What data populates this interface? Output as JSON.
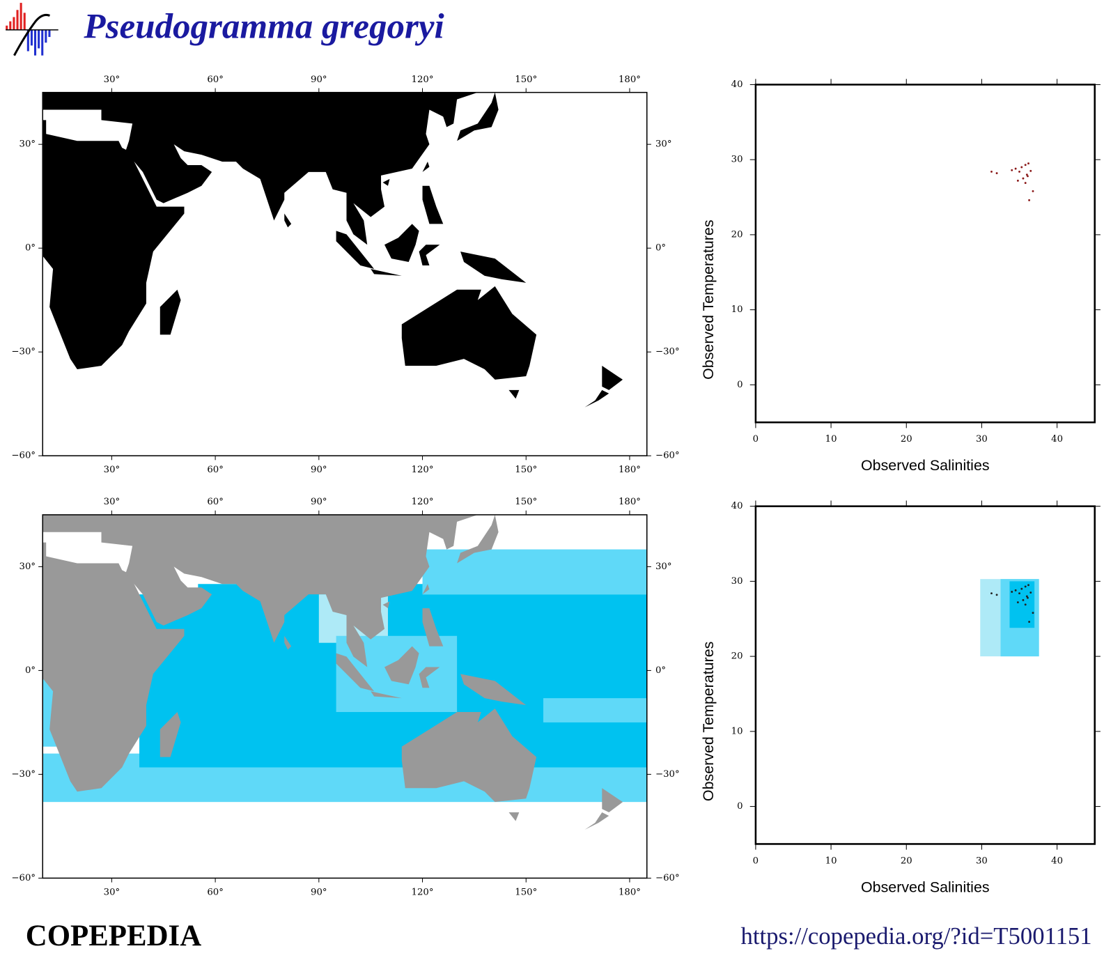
{
  "header": {
    "title": "Pseudogramma gregoryi"
  },
  "chart_data": [
    {
      "type": "map",
      "land_color": "#000000",
      "xlim": [
        10,
        185
      ],
      "ylim": [
        -60,
        45
      ],
      "xticks": [
        {
          "value": 30,
          "label": "30°"
        },
        {
          "value": 60,
          "label": "60°"
        },
        {
          "value": 90,
          "label": "90°"
        },
        {
          "value": 120,
          "label": "120°"
        },
        {
          "value": 150,
          "label": "150°"
        },
        {
          "value": 180,
          "label": "180°"
        }
      ],
      "yticks": [
        {
          "value": 30,
          "label": "30°"
        },
        {
          "value": 0,
          "label": "0°"
        },
        {
          "value": -30,
          "label": "−30°"
        },
        {
          "value": -60,
          "label": "−60°"
        }
      ]
    },
    {
      "type": "map",
      "land_color": "#999999",
      "zone_colors": [
        "#aeeaf7",
        "#5fd9f8",
        "#00c2f0"
      ],
      "xlim": [
        10,
        185
      ],
      "ylim": [
        -60,
        45
      ],
      "xticks": [
        {
          "value": 30,
          "label": "30°"
        },
        {
          "value": 60,
          "label": "60°"
        },
        {
          "value": 90,
          "label": "90°"
        },
        {
          "value": 120,
          "label": "120°"
        },
        {
          "value": 150,
          "label": "150°"
        },
        {
          "value": 180,
          "label": "180°"
        }
      ],
      "yticks": [
        {
          "value": 30,
          "label": "30°"
        },
        {
          "value": 0,
          "label": "0°"
        },
        {
          "value": -30,
          "label": "−30°"
        },
        {
          "value": -60,
          "label": "−60°"
        }
      ]
    },
    {
      "type": "scatter",
      "xlabel": "Observed Salinities",
      "ylabel": "Observed Temperatures",
      "color": "#8b1a1a",
      "xlim": [
        0,
        45
      ],
      "ylim": [
        -5,
        40
      ],
      "xticks": [
        0,
        10,
        20,
        30,
        40
      ],
      "yticks": [
        0,
        10,
        20,
        30,
        40
      ],
      "x": [
        31.3,
        32.0,
        34.0,
        34.5,
        35.0,
        35.3,
        35.8,
        36.0,
        36.2,
        35.5,
        36.5,
        35.8,
        36.8,
        36.3,
        34.8,
        36.1
      ],
      "y": [
        28.4,
        28.2,
        28.6,
        28.8,
        28.4,
        29.0,
        29.3,
        28.0,
        29.5,
        27.5,
        28.5,
        26.9,
        25.8,
        24.6,
        27.2,
        27.8
      ]
    },
    {
      "type": "scatter",
      "xlabel": "Observed Salinities",
      "ylabel": "Observed Temperatures",
      "color": "#222222",
      "xlim": [
        0,
        45
      ],
      "ylim": [
        -5,
        40
      ],
      "xticks": [
        0,
        10,
        20,
        30,
        40
      ],
      "yticks": [
        0,
        10,
        20,
        30,
        40
      ],
      "boxes": [
        {
          "xlim": [
            29.8,
            37.6
          ],
          "ylim": [
            20,
            30.3
          ],
          "color": "#aeeaf7"
        },
        {
          "xlim": [
            32.5,
            37.6
          ],
          "ylim": [
            20,
            30.3
          ],
          "color": "#5fd9f8"
        },
        {
          "xlim": [
            33.7,
            37.0
          ],
          "ylim": [
            23.8,
            30.0
          ],
          "color": "#00c2f0"
        }
      ],
      "x": [
        31.3,
        32.0,
        34.0,
        34.5,
        35.0,
        35.3,
        35.8,
        36.0,
        36.2,
        35.5,
        36.5,
        35.8,
        36.8,
        36.3,
        34.8,
        36.1
      ],
      "y": [
        28.4,
        28.2,
        28.6,
        28.8,
        28.4,
        29.0,
        29.3,
        28.0,
        29.5,
        27.5,
        28.5,
        26.9,
        25.8,
        24.6,
        27.2,
        27.8
      ]
    }
  ],
  "footer": {
    "brand": "COPEPEDIA",
    "url": "https://copepedia.org/?id=T5001151"
  }
}
